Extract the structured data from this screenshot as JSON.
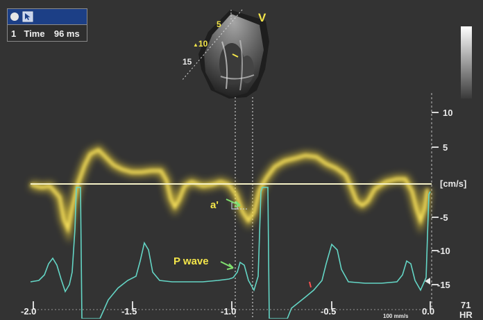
{
  "measure_panel": {
    "index": "1",
    "label": "Time",
    "value": "96 ms",
    "icons": [
      "record-dot-icon",
      "cursor-icon"
    ]
  },
  "probe": {
    "view_label": "V",
    "depth_ticks": [
      "5",
      "10",
      "15"
    ]
  },
  "velocity_axis": {
    "unit": "[cm/s]",
    "ticks": [
      "10",
      "5",
      "-5",
      "-10",
      "-15"
    ]
  },
  "time_axis": {
    "ticks": [
      "-2.0",
      "-1.5",
      "-1.0",
      "-0.5",
      "0.0"
    ],
    "speed_label": "100 mm/s"
  },
  "heart_rate": {
    "value": "71",
    "label": "HR"
  },
  "annotations": {
    "a_prime": "a'",
    "p_wave": "P wave"
  },
  "colors": {
    "background": "#333333",
    "doppler": "#f4d83a",
    "ecg": "#64d6c6",
    "baseline": "#f6f2c8",
    "annotation": "#f4e64a"
  }
}
